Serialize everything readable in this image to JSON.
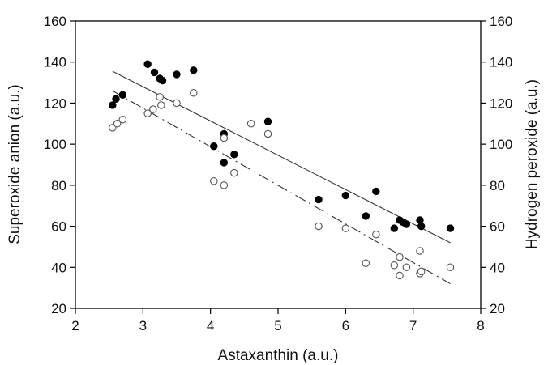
{
  "chart_data": {
    "type": "scatter",
    "title": "",
    "xlabel": "Astaxanthin (a.u.)",
    "ylabel_left": "Superoxide anion (a.u.)",
    "ylabel_right": "Hydrogen peroxide (a.u.)",
    "xlim": [
      2,
      8
    ],
    "ylim": [
      20,
      160
    ],
    "x_ticks": [
      "2",
      "3",
      "4",
      "5",
      "6",
      "7",
      "8"
    ],
    "y_ticks": [
      "20",
      "40",
      "60",
      "80",
      "100",
      "120",
      "140",
      "160"
    ],
    "grid": false,
    "legend": "none",
    "series": [
      {
        "marker": "filled-circle",
        "axis": "left",
        "color": "#000000",
        "points": [
          [
            2.55,
            119
          ],
          [
            2.6,
            122
          ],
          [
            2.7,
            124
          ],
          [
            3.07,
            139
          ],
          [
            3.17,
            135
          ],
          [
            3.25,
            132
          ],
          [
            3.29,
            131
          ],
          [
            3.5,
            134
          ],
          [
            3.75,
            136
          ],
          [
            4.05,
            99
          ],
          [
            4.2,
            91
          ],
          [
            4.2,
            105
          ],
          [
            4.35,
            95
          ],
          [
            4.85,
            111
          ],
          [
            5.6,
            73
          ],
          [
            6.0,
            75
          ],
          [
            6.3,
            65
          ],
          [
            6.45,
            77
          ],
          [
            6.72,
            59
          ],
          [
            6.8,
            63
          ],
          [
            6.85,
            62
          ],
          [
            6.9,
            61
          ],
          [
            7.1,
            63
          ],
          [
            7.12,
            60
          ],
          [
            7.55,
            59
          ]
        ],
        "fit_line": {
          "style": "solid",
          "from": [
            2.55,
            135.5
          ],
          "to": [
            7.55,
            52
          ]
        }
      },
      {
        "marker": "open-circle",
        "axis": "right",
        "color": "#555555",
        "points": [
          [
            2.55,
            108
          ],
          [
            2.62,
            110
          ],
          [
            2.7,
            112
          ],
          [
            3.07,
            115
          ],
          [
            3.15,
            117
          ],
          [
            3.25,
            123
          ],
          [
            3.27,
            119
          ],
          [
            3.5,
            120
          ],
          [
            3.75,
            125
          ],
          [
            4.05,
            82
          ],
          [
            4.2,
            80
          ],
          [
            4.2,
            103
          ],
          [
            4.35,
            86
          ],
          [
            4.6,
            110
          ],
          [
            4.85,
            105
          ],
          [
            5.6,
            60
          ],
          [
            6.0,
            59
          ],
          [
            6.3,
            42
          ],
          [
            6.45,
            56
          ],
          [
            6.72,
            41
          ],
          [
            6.8,
            36
          ],
          [
            6.8,
            45
          ],
          [
            6.9,
            40
          ],
          [
            7.1,
            37
          ],
          [
            7.1,
            48
          ],
          [
            7.12,
            38
          ],
          [
            7.55,
            40
          ]
        ],
        "fit_line": {
          "style": "dash-dot",
          "from": [
            2.55,
            126
          ],
          "to": [
            7.55,
            32
          ]
        }
      }
    ]
  }
}
